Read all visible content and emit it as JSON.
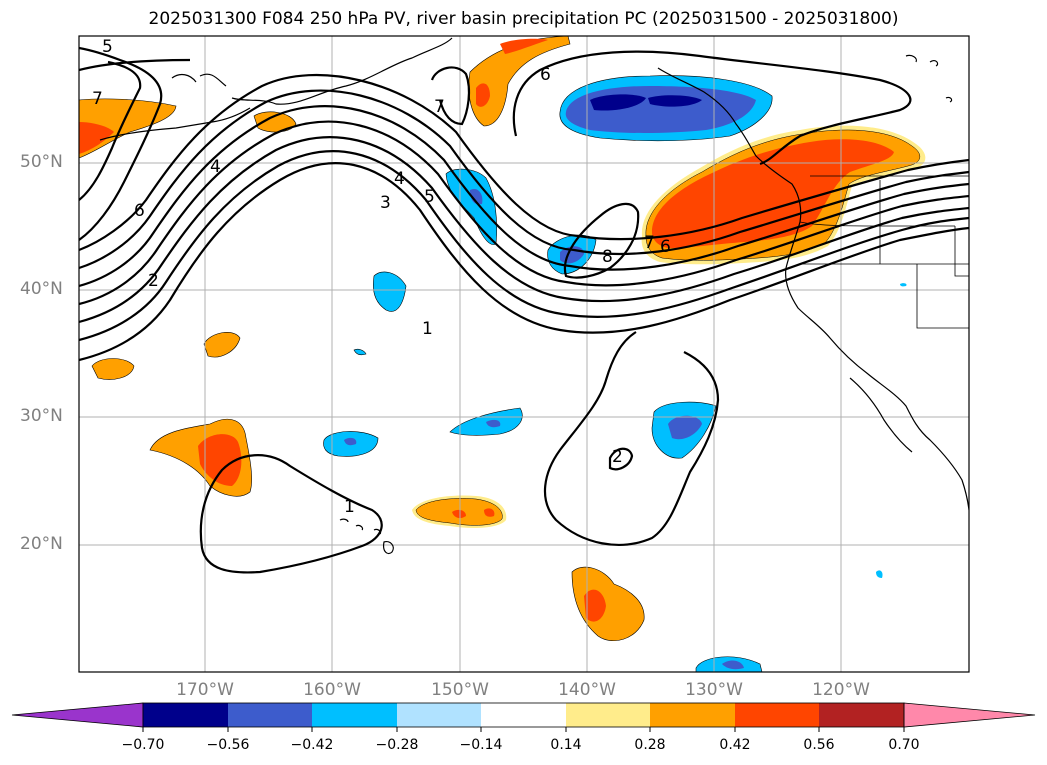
{
  "title": "2025031300 F084 250 hPa PV, river basin precipitation PC (2025031500 - 2025031800)",
  "lat_labels": [
    "50°N",
    "40°N",
    "30°N",
    "20°N"
  ],
  "lon_labels": [
    "170°W",
    "160°W",
    "150°W",
    "140°W",
    "130°W",
    "120°W"
  ],
  "contour_labels": [
    "5",
    "7",
    "4",
    "6",
    "2",
    "3",
    "5",
    "4",
    "7",
    "6",
    "8",
    "6",
    "7",
    "1",
    "2",
    "1"
  ],
  "colorbar": {
    "ticks": [
      "−0.70",
      "−0.56",
      "−0.42",
      "−0.28",
      "−0.14",
      "0.14",
      "0.28",
      "0.42",
      "0.56",
      "0.70"
    ],
    "colors": [
      "#9a34cc",
      "#00008b",
      "#3d5ccc",
      "#00bfff",
      "#b0e2ff",
      "#ffffff",
      "#ffec8b",
      "#ffa000",
      "#ff4500",
      "#b22222",
      "#ff88aa"
    ]
  },
  "shading_colors": {
    "pos_light": "#ffec8b",
    "pos_mid": "#ffa000",
    "pos_strong": "#ff4500",
    "neg_light": "#b0e2ff",
    "neg_mid": "#00bfff",
    "neg_strong": "#3d5ccc",
    "neg_extreme": "#00008b"
  }
}
